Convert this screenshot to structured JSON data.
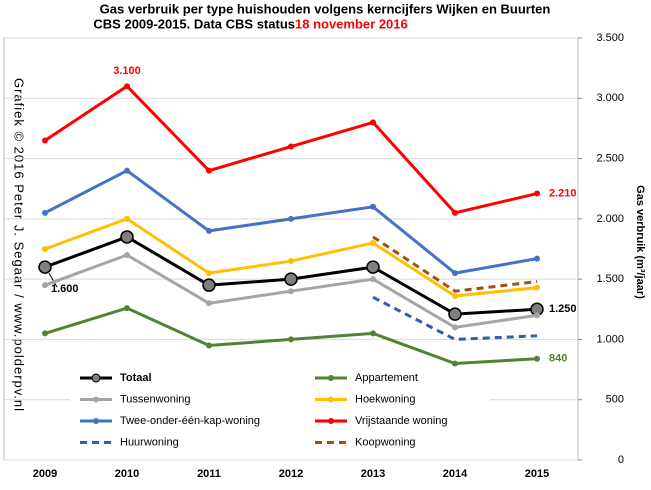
{
  "chart_data": {
    "type": "line",
    "title": "Gas verbruik per type huishouden volgens kerncijfers Wijken en Buurten",
    "title_line2": "CBS 2009-2015. Data CBS status ",
    "title_date": "18 november 2016",
    "y_axis_label": "Gas verbruik (m³/jaar)",
    "credit": "Grafiek © 2016 Peter J. Segaar / www.polderpv.nl",
    "categories": [
      "2009",
      "2010",
      "2011",
      "2012",
      "2013",
      "2014",
      "2015"
    ],
    "series": [
      {
        "name": "Totaal",
        "color": "#000000",
        "values": [
          1600,
          1850,
          1450,
          1500,
          1600,
          1210,
          1250
        ],
        "value_labels": [
          "1.600",
          null,
          null,
          null,
          null,
          null,
          "1.250"
        ]
      },
      {
        "name": "Appartement",
        "color": "#538135",
        "values": [
          1050,
          1260,
          950,
          1000,
          1050,
          800,
          840
        ],
        "value_labels": [
          null,
          null,
          null,
          null,
          null,
          null,
          "840"
        ]
      },
      {
        "name": "Tussenwoning",
        "color": "#a5a5a5",
        "values": [
          1450,
          1700,
          1300,
          1400,
          1500,
          1100,
          1200
        ]
      },
      {
        "name": "Hoekwoning",
        "color": "#ffc000",
        "values": [
          1750,
          2000,
          1550,
          1650,
          1800,
          1360,
          1430
        ]
      },
      {
        "name": "Twee-onder-één-kap-woning",
        "color": "#4472c4",
        "values": [
          2050,
          2400,
          1900,
          2000,
          2100,
          1550,
          1670
        ]
      },
      {
        "name": "Vrijstaande woning",
        "color": "#ff0000",
        "values": [
          2650,
          3100,
          2400,
          2600,
          2800,
          2050,
          2210
        ],
        "value_labels": [
          null,
          "3.100",
          null,
          null,
          null,
          null,
          "2.210"
        ]
      },
      {
        "name": "Huurwoning",
        "color": "#2e5fa8",
        "dashed": true,
        "values": [
          null,
          null,
          null,
          null,
          1350,
          1000,
          1030
        ]
      },
      {
        "name": "Koopwoning",
        "color": "#a0500f",
        "dashed": true,
        "values": [
          null,
          null,
          null,
          null,
          1850,
          1400,
          1480
        ]
      }
    ],
    "ylim": [
      0,
      3500
    ],
    "yticks": [
      0,
      500,
      {
        "value": 1000,
        "label": "1.000"
      },
      {
        "value": 1500,
        "label": "1.500"
      },
      {
        "value": 2000,
        "label": "2.000"
      },
      {
        "value": 2500,
        "label": "2.500"
      },
      {
        "value": 3000,
        "label": "3.000"
      },
      {
        "value": 3500,
        "label": "3.500"
      }
    ],
    "grid": true
  }
}
